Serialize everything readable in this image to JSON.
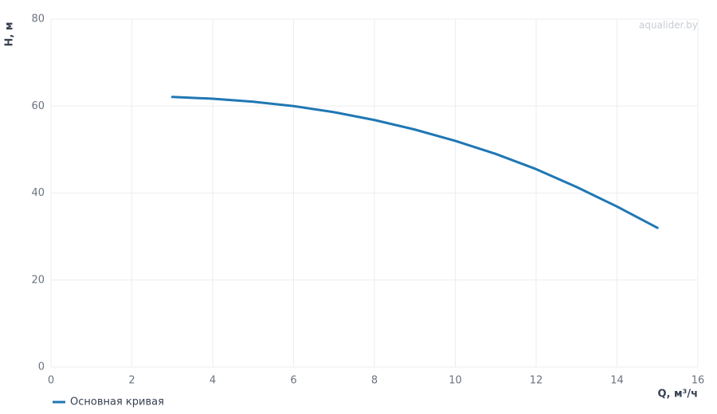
{
  "chart_data": {
    "type": "line",
    "x_label": "Q, м³/ч",
    "y_label": "H, м",
    "watermark": "aqualider.by",
    "x": [
      3,
      4,
      5,
      6,
      7,
      8,
      9,
      10,
      11,
      12,
      13,
      14,
      15
    ],
    "series": [
      {
        "name": "Основная кривая",
        "color": "#1f77b4",
        "values": [
          62.1,
          61.7,
          61,
          60,
          58.6,
          56.8,
          54.6,
          52,
          49,
          45.5,
          41.4,
          36.9,
          32
        ]
      }
    ],
    "xlim": [
      0,
      16
    ],
    "xticks": [
      0,
      2,
      4,
      6,
      8,
      10,
      12,
      14,
      16
    ],
    "ylim": [
      0,
      80
    ],
    "yticks": [
      0,
      20,
      40,
      60,
      80
    ],
    "grid": true
  }
}
